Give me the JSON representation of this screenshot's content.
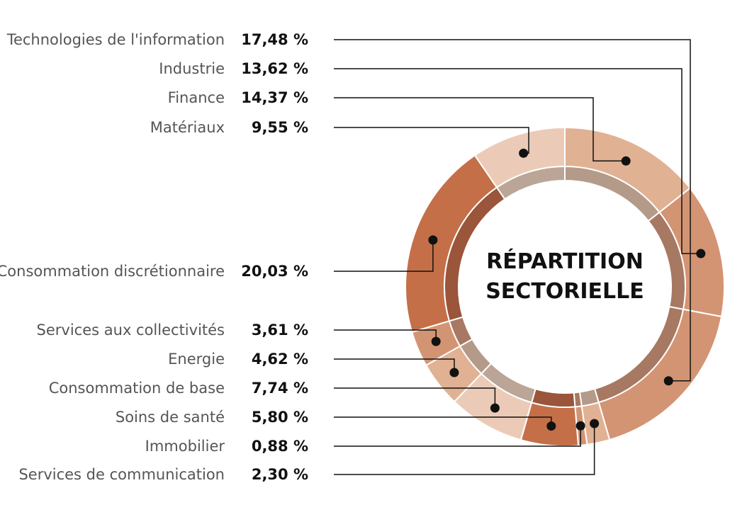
{
  "chart_data": {
    "type": "pie",
    "title_lines": [
      "RÉPARTITION",
      "SECTORIELLE"
    ],
    "unit": "%",
    "categories": [
      {
        "label": "Technologies de l'information",
        "value_text": "17,48 %",
        "value": 17.48,
        "color": "#d39473",
        "inner": "#a77862"
      },
      {
        "label": "Industrie",
        "value_text": "13,62 %",
        "value": 13.62,
        "color": "#d39473",
        "inner": "#a77862"
      },
      {
        "label": "Finance",
        "value_text": "14,37 %",
        "value": 14.37,
        "color": "#e0b193",
        "inner": "#b49a88"
      },
      {
        "label": "Matériaux",
        "value_text": "9,55 %",
        "value": 9.55,
        "color": "#ebcbb7",
        "inner": "#bba596"
      },
      {
        "label": "Consommation discrétionnaire",
        "value_text": "20,03 %",
        "value": 20.03,
        "color": "#c46f48",
        "inner": "#9a553a"
      },
      {
        "label": "Services aux collectivités",
        "value_text": "3,61 %",
        "value": 3.61,
        "color": "#d39473",
        "inner": "#a77862"
      },
      {
        "label": "Energie",
        "value_text": "4,62 %",
        "value": 4.62,
        "color": "#e0b193",
        "inner": "#b49a88"
      },
      {
        "label": "Consommation de base",
        "value_text": "7,74 %",
        "value": 7.74,
        "color": "#ebcbb7",
        "inner": "#bba596"
      },
      {
        "label": "Soins de santé",
        "value_text": "5,80 %",
        "value": 5.8,
        "color": "#c46f48",
        "inner": "#9a553a"
      },
      {
        "label": "Immobilier",
        "value_text": "0,88 %",
        "value": 0.88,
        "color": "#d39473",
        "inner": "#a77862"
      },
      {
        "label": "Services de communication",
        "value_text": "2,30 %",
        "value": 2.3,
        "color": "#e0b193",
        "inner": "#b49a88"
      }
    ]
  }
}
